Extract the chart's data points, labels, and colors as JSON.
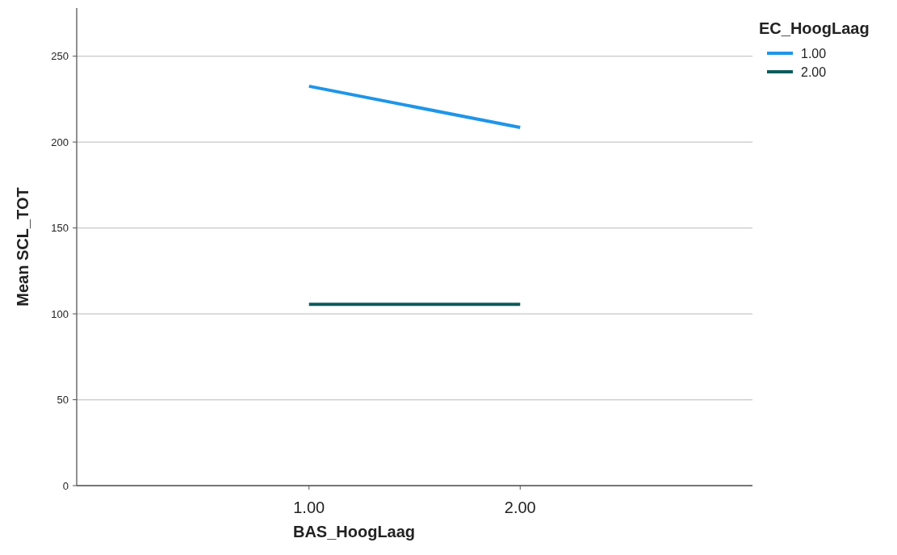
{
  "chart_data": {
    "type": "line",
    "xlabel": "BAS_HoogLaag",
    "ylabel": "Mean SCL_TOT",
    "legend_title": "EC_HoogLaag",
    "categories": [
      "1.00",
      "2.00"
    ],
    "series": [
      {
        "name": "1.00",
        "color": "#1f95e8",
        "values": [
          232.5,
          208.5
        ]
      },
      {
        "name": "2.00",
        "color": "#0c5b5b",
        "values": [
          105.5,
          105.5
        ]
      }
    ],
    "ylim": [
      0,
      278
    ],
    "yticks": [
      0,
      50,
      100,
      150,
      200,
      250
    ],
    "grid": "y",
    "legend": "top right",
    "marker": "none",
    "line_style": "solid"
  }
}
